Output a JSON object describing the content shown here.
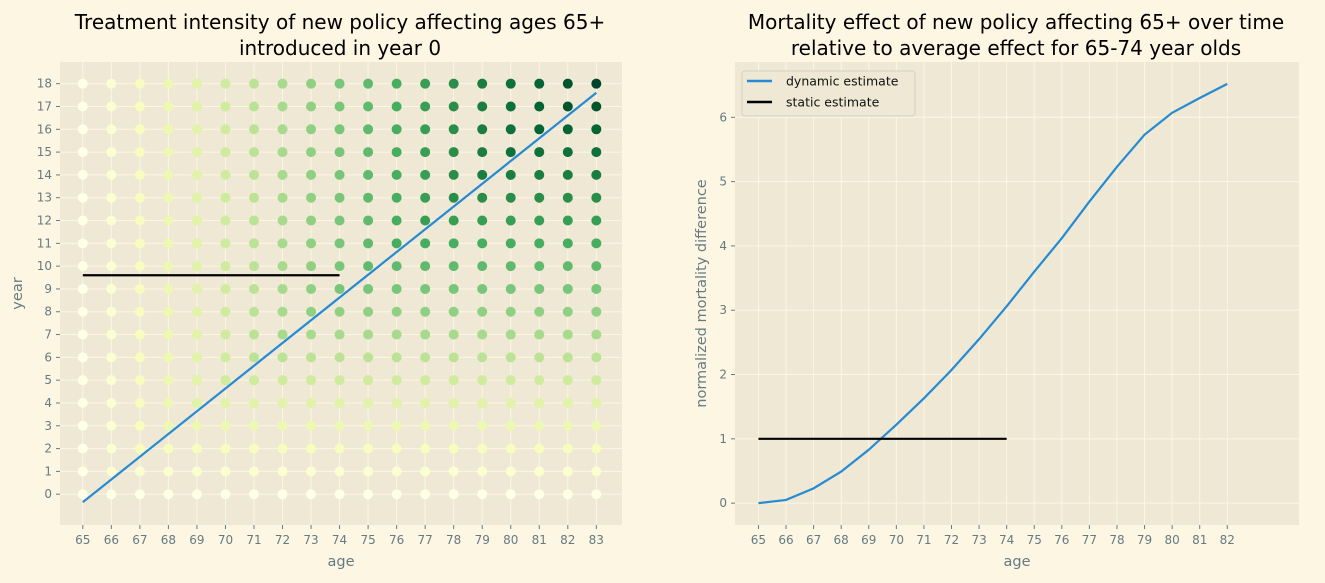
{
  "chart_data": [
    {
      "type": "scatter",
      "title": [
        "Treatment intensity of new policy affecting ages 65+",
        "introduced in year 0"
      ],
      "xlabel": "age",
      "ylabel": "year",
      "xticks": [
        65,
        66,
        67,
        68,
        69,
        70,
        71,
        72,
        73,
        74,
        75,
        76,
        77,
        78,
        79,
        80,
        81,
        82,
        83
      ],
      "yticks": [
        0,
        1,
        2,
        3,
        4,
        5,
        6,
        7,
        8,
        9,
        10,
        11,
        12,
        13,
        14,
        15,
        16,
        17,
        18
      ],
      "xlim": [
        64.2,
        83.9
      ],
      "ylim": [
        -1.35,
        18.95
      ],
      "grid": true,
      "colormap": "YlGn",
      "color_range": [
        0,
        18
      ],
      "intensity_by_year": [
        [
          0,
          0,
          0,
          0,
          0,
          0,
          0,
          0,
          0,
          0,
          0,
          0,
          0,
          0,
          0,
          0,
          0,
          0,
          0
        ],
        [
          0,
          1,
          1,
          1,
          1,
          1,
          1,
          1,
          1,
          1,
          1,
          1,
          1,
          1,
          1,
          1,
          1,
          1,
          1
        ],
        [
          0,
          1,
          2,
          2,
          2,
          2,
          2,
          2,
          2,
          2,
          2,
          2,
          2,
          2,
          2,
          2,
          2,
          2,
          2
        ],
        [
          0,
          1,
          2,
          3,
          3,
          3,
          3,
          3,
          3,
          3,
          3,
          3,
          3,
          3,
          3,
          3,
          3,
          3,
          3
        ],
        [
          0,
          1,
          2,
          3,
          4,
          4,
          4,
          4,
          4,
          4,
          4,
          4,
          4,
          4,
          4,
          4,
          4,
          4,
          4
        ],
        [
          0,
          1,
          2,
          3,
          4,
          5,
          5,
          5,
          5,
          5,
          5,
          5,
          5,
          5,
          5,
          5,
          5,
          5,
          5
        ],
        [
          0,
          1,
          2,
          3,
          4,
          5,
          6,
          6,
          6,
          6,
          6,
          6,
          6,
          6,
          6,
          6,
          6,
          6,
          6
        ],
        [
          0,
          1,
          2,
          3,
          4,
          5,
          6,
          7,
          7,
          7,
          7,
          7,
          7,
          7,
          7,
          7,
          7,
          7,
          7
        ],
        [
          0,
          1,
          2,
          3,
          4,
          5,
          6,
          7,
          8,
          8,
          8,
          8,
          8,
          8,
          8,
          8,
          8,
          8,
          8
        ],
        [
          0,
          1,
          2,
          3,
          4,
          5,
          6,
          7,
          8,
          9,
          9,
          9,
          9,
          9,
          9,
          9,
          9,
          9,
          9
        ],
        [
          0,
          1,
          2,
          3,
          4,
          5,
          6,
          7,
          8,
          9,
          10,
          10,
          10,
          10,
          10,
          10,
          10,
          10,
          10
        ],
        [
          0,
          1,
          2,
          3,
          4,
          5,
          6,
          7,
          8,
          9,
          10,
          11,
          11,
          11,
          11,
          11,
          11,
          11,
          11
        ],
        [
          0,
          1,
          2,
          3,
          4,
          5,
          6,
          7,
          8,
          9,
          10,
          11,
          12,
          12,
          12,
          12,
          12,
          12,
          12
        ],
        [
          0,
          1,
          2,
          3,
          4,
          5,
          6,
          7,
          8,
          9,
          10,
          11,
          12,
          13,
          13,
          13,
          13,
          13,
          13
        ],
        [
          0,
          1,
          2,
          3,
          4,
          5,
          6,
          7,
          8,
          9,
          10,
          11,
          12,
          13,
          14,
          14,
          14,
          14,
          14
        ],
        [
          0,
          1,
          2,
          3,
          4,
          5,
          6,
          7,
          8,
          9,
          10,
          11,
          12,
          13,
          14,
          15,
          15,
          15,
          15
        ],
        [
          0,
          1,
          2,
          3,
          4,
          5,
          6,
          7,
          8,
          9,
          10,
          11,
          12,
          13,
          14,
          15,
          16,
          16,
          16
        ],
        [
          0,
          1,
          2,
          3,
          4,
          5,
          6,
          7,
          8,
          9,
          10,
          11,
          12,
          13,
          14,
          15,
          16,
          17,
          17
        ],
        [
          0,
          1,
          2,
          3,
          4,
          5,
          6,
          7,
          8,
          9,
          10,
          11,
          12,
          13,
          14,
          15,
          16,
          17,
          18
        ]
      ],
      "lines": [
        {
          "name": "diagonal",
          "color": "#268bd2",
          "x": [
            65,
            83
          ],
          "y": [
            -0.35,
            17.6
          ]
        },
        {
          "name": "horizontal",
          "color": "#000000",
          "x": [
            65,
            74
          ],
          "y": [
            9.6,
            9.6
          ]
        }
      ]
    },
    {
      "type": "line",
      "title": [
        "Mortality effect of new policy affecting 65+ over time",
        "relative to average effect for 65-74 year olds"
      ],
      "xlabel": "age",
      "ylabel": "normalized mortality difference",
      "xticks": [
        65,
        66,
        67,
        68,
        69,
        70,
        71,
        72,
        73,
        74,
        75,
        76,
        77,
        78,
        79,
        80,
        81,
        82
      ],
      "yticks": [
        0,
        1,
        2,
        3,
        4,
        5,
        6
      ],
      "xlim": [
        64.15,
        84.6
      ],
      "ylim": [
        -0.34,
        6.86
      ],
      "grid": true,
      "legend": "top-left",
      "series": [
        {
          "name": "dynamic estimate",
          "color": "#268bd2",
          "x": [
            65,
            66,
            67,
            68,
            69,
            70,
            71,
            72,
            73,
            74,
            75,
            76,
            77,
            78,
            79,
            80,
            81,
            82
          ],
          "y": [
            0,
            0.05,
            0.23,
            0.49,
            0.83,
            1.22,
            1.63,
            2.07,
            2.55,
            3.06,
            3.6,
            4.12,
            4.69,
            5.23,
            5.73,
            6.07,
            6.3,
            6.52
          ]
        },
        {
          "name": "static estimate",
          "color": "#000000",
          "x": [
            65,
            74
          ],
          "y": [
            1,
            1
          ]
        }
      ]
    }
  ]
}
